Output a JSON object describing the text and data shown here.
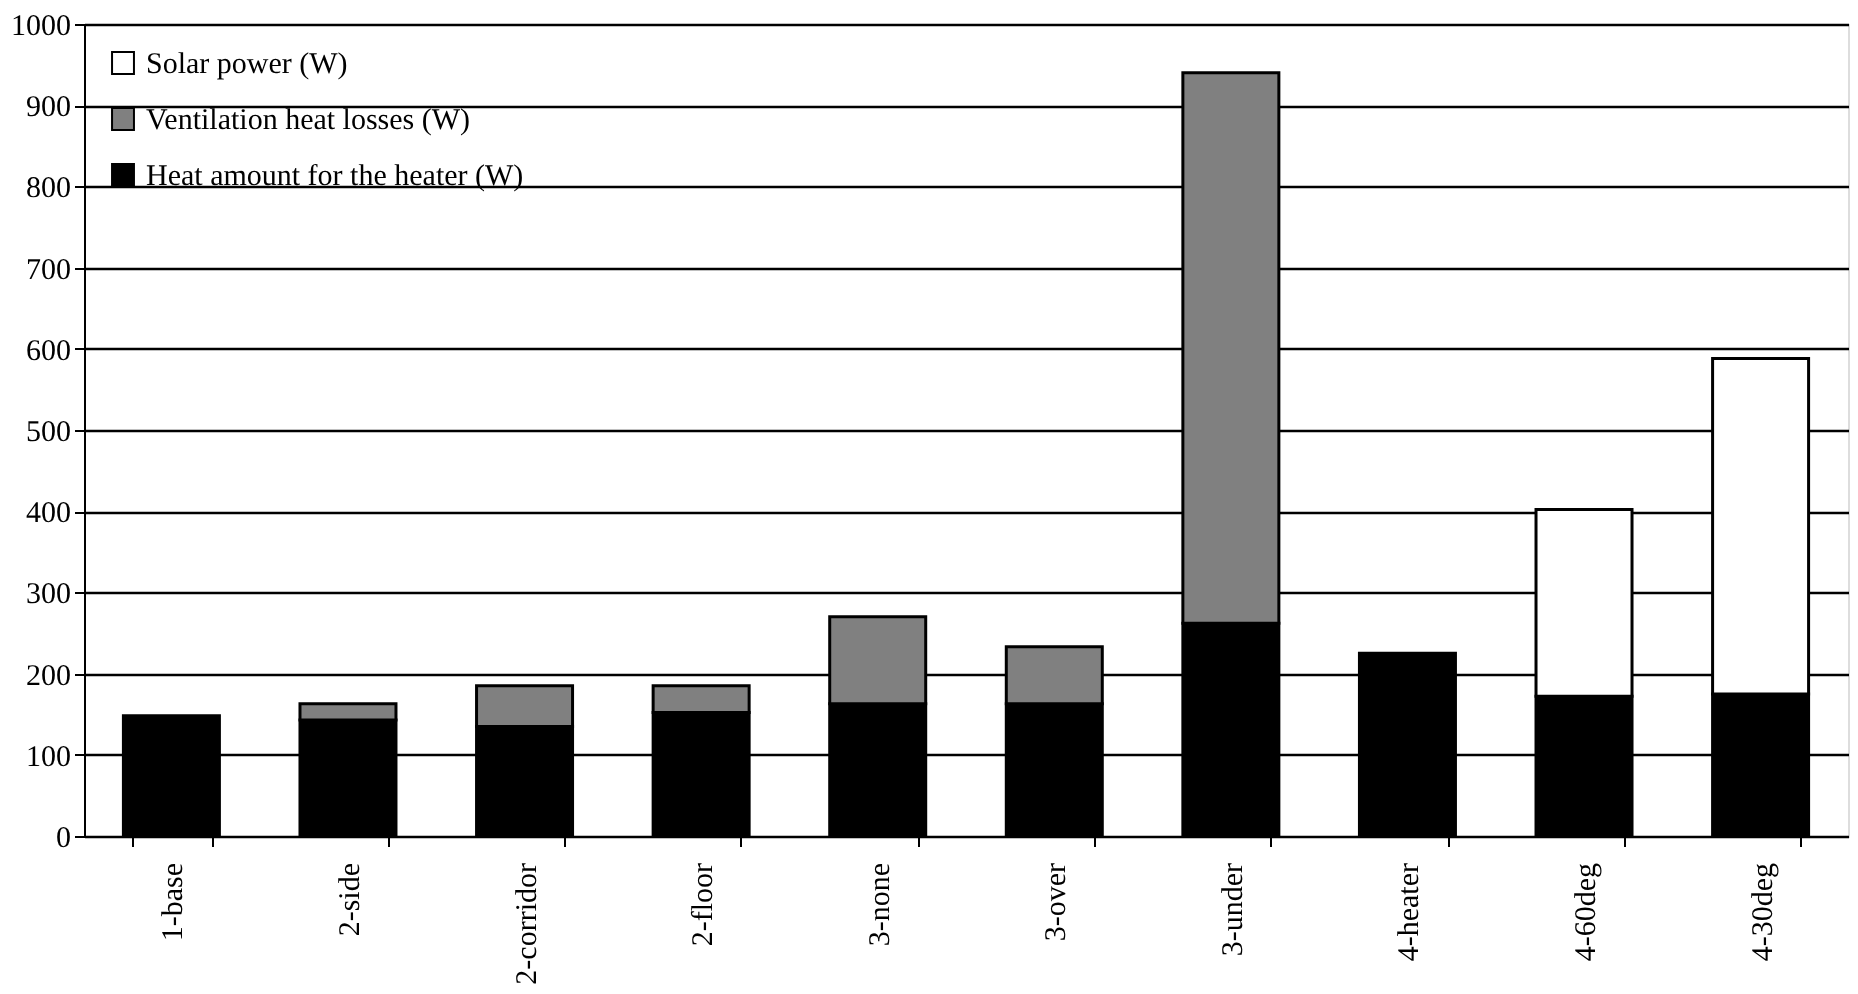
{
  "chart_data": {
    "type": "bar",
    "stacked": true,
    "categories": [
      "1-base",
      "2-side",
      "2-corridor",
      "2-floor",
      "3-none",
      "3-over",
      "3-under",
      "4-heater",
      "4-60deg",
      "4-30deg"
    ],
    "series": [
      {
        "name": "Heat amount for the heater (W)",
        "color": "#000000",
        "values": [
          148,
          143,
          135,
          152,
          163,
          163,
          262,
          225,
          172,
          175
        ]
      },
      {
        "name": "Ventilation heat losses (W)",
        "color": "#808080",
        "values": [
          null,
          20,
          50,
          33,
          107,
          70,
          678,
          null,
          null,
          null
        ]
      },
      {
        "name": "Solar power (W)",
        "color": "#ffffff",
        "values": [
          null,
          null,
          null,
          null,
          null,
          null,
          null,
          null,
          230,
          413
        ]
      }
    ],
    "ylim": [
      0,
      1000
    ],
    "yticks": [
      0,
      100,
      200,
      300,
      400,
      500,
      600,
      700,
      800,
      900,
      1000
    ],
    "grid": "y",
    "legend": "top left"
  }
}
